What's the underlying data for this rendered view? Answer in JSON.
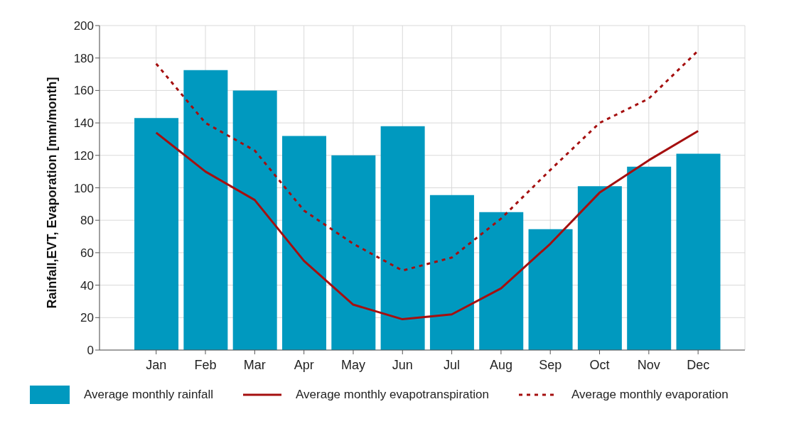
{
  "chart_data": {
    "type": "bar",
    "ylabel": "Rainfall,EVT, Evaporation [mm/month]",
    "categories": [
      "Jan",
      "Feb",
      "Mar",
      "Apr",
      "May",
      "Jun",
      "Jul",
      "Aug",
      "Sep",
      "Oct",
      "Nov",
      "Dec"
    ],
    "series": [
      {
        "name": "Average monthly rainfall",
        "color": "#0099bf",
        "values": [
          143,
          172.5,
          160,
          132,
          120,
          138,
          95.5,
          85,
          74.5,
          101,
          113,
          121
        ]
      },
      {
        "name": "Average monthly evapotranspiration",
        "type": "line",
        "color": "#a50f0f",
        "line_style": "solid",
        "values": [
          134,
          110,
          92.5,
          55,
          28,
          19,
          22,
          38,
          65.5,
          97,
          117,
          135
        ]
      },
      {
        "name": "Average monthly evaporation",
        "type": "line",
        "color": "#a50f0f",
        "line_style": "dashed",
        "values": [
          176.5,
          140,
          123,
          86,
          65.5,
          49,
          57,
          81,
          111,
          140,
          155,
          184.5
        ]
      }
    ],
    "ylim": [
      0,
      200
    ],
    "yticks": [
      0,
      20,
      40,
      60,
      80,
      100,
      120,
      140,
      160,
      180,
      200
    ],
    "grid": true,
    "legend": "bottom"
  }
}
